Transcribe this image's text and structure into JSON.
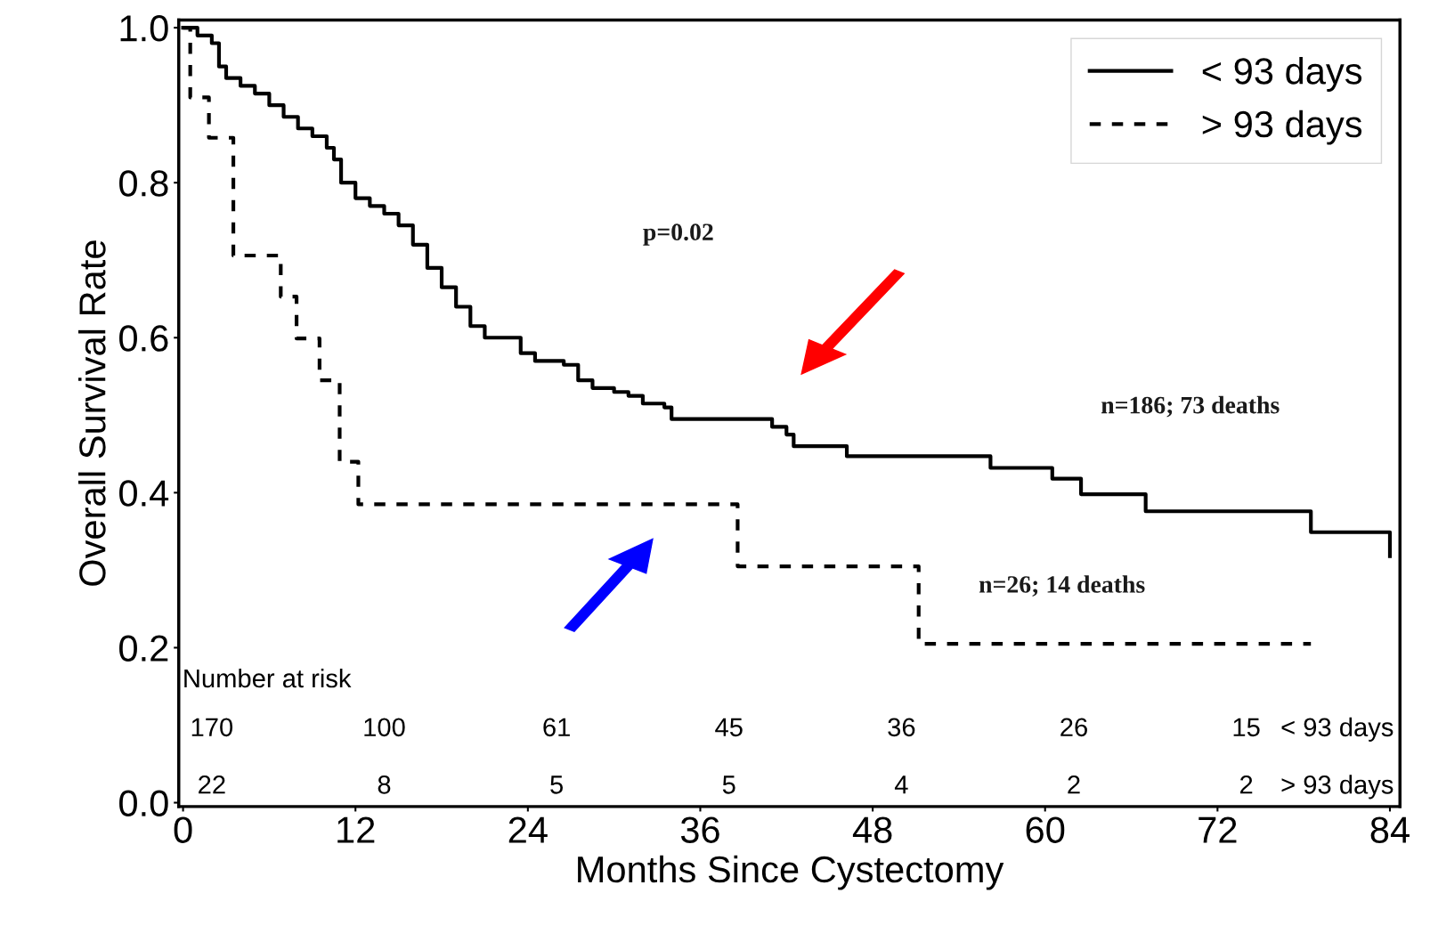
{
  "chart_data": {
    "type": "step",
    "xlabel": "Months Since Cystectomy",
    "ylabel": "Overall Survival Rate",
    "xlim": [
      -0.3,
      84.7
    ],
    "ylim": [
      -0.005,
      1.01
    ],
    "xticks": [
      0,
      12,
      24,
      36,
      48,
      60,
      72,
      84
    ],
    "yticks": [
      {
        "value": 0,
        "label": "0.0"
      },
      {
        "value": 0.2,
        "label": "0.2"
      },
      {
        "value": 0.4,
        "label": "0.4"
      },
      {
        "value": 0.6,
        "label": "0.6"
      },
      {
        "value": 0.8,
        "label": "0.8"
      },
      {
        "value": 1,
        "label": "1.0"
      }
    ],
    "legend": "top right",
    "grid": false,
    "marker": "none",
    "series": [
      {
        "name": "< 93 days",
        "color": "#000000",
        "line_style": "solid",
        "x": [
          0,
          1,
          2,
          2.5,
          3,
          4,
          5,
          6,
          7,
          8,
          9,
          10,
          10.5,
          11,
          12,
          13,
          14,
          15,
          16,
          17,
          18,
          19,
          20,
          21,
          23.5,
          24.5,
          26.5,
          27.5,
          28.5,
          30,
          31,
          32,
          33.5,
          34,
          41,
          42,
          42.5,
          46.2,
          56.2,
          60.5,
          62.5,
          67,
          78.5,
          84,
          84
        ],
        "values": [
          1,
          0.99,
          0.98,
          0.95,
          0.935,
          0.925,
          0.915,
          0.9,
          0.885,
          0.87,
          0.86,
          0.845,
          0.83,
          0.8,
          0.78,
          0.77,
          0.76,
          0.745,
          0.72,
          0.69,
          0.665,
          0.64,
          0.615,
          0.6,
          0.58,
          0.57,
          0.565,
          0.545,
          0.535,
          0.53,
          0.525,
          0.515,
          0.51,
          0.495,
          0.485,
          0.475,
          0.46,
          0.447,
          0.432,
          0.418,
          0.398,
          0.376,
          0.349,
          0.349,
          0.318
        ]
      },
      {
        "name": "> 93 days",
        "color": "#000000",
        "line_style": "dashed",
        "x": [
          0,
          0.5,
          1.8,
          3.5,
          6.8,
          7.9,
          9.5,
          10.9,
          12.2,
          38.6,
          51.2,
          78.5
        ],
        "values": [
          1,
          0.91,
          0.858,
          0.706,
          0.653,
          0.599,
          0.545,
          0.44,
          0.385,
          0.305,
          0.205,
          0.205
        ]
      }
    ],
    "annotations": [
      "p=0.02",
      "n=186; 73 deaths",
      "n=26; 14 deaths",
      "Number at risk",
      "170",
      "100",
      "61",
      "45",
      "36",
      "26",
      "15",
      "< 93 days",
      "22",
      "8",
      "5",
      "5",
      "4",
      "2",
      "2",
      "> 93 days"
    ]
  }
}
